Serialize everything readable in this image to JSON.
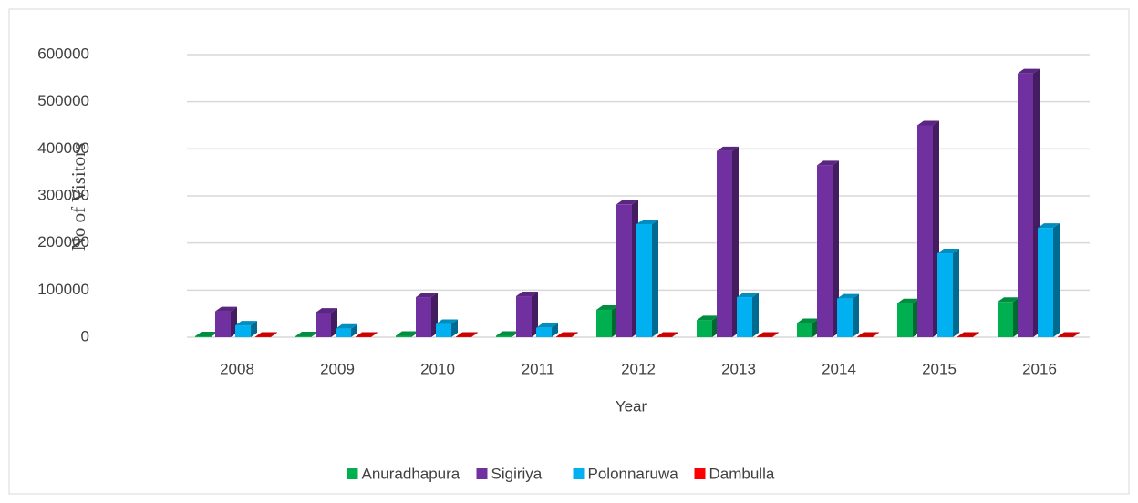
{
  "chart_data": {
    "type": "bar",
    "x_label": "Year",
    "y_label": "No of Visitors",
    "categories": [
      "2008",
      "2009",
      "2010",
      "2011",
      "2012",
      "2013",
      "2014",
      "2015",
      "2016"
    ],
    "series": [
      {
        "name": "Anuradhapura",
        "color": "#00b050",
        "values": [
          2000,
          2000,
          3000,
          3000,
          58000,
          36000,
          30000,
          72000,
          75000
        ]
      },
      {
        "name": "Sigiriya",
        "color": "#7030a0",
        "values": [
          55000,
          52000,
          85000,
          87000,
          282000,
          395000,
          365000,
          450000,
          560000
        ]
      },
      {
        "name": "Polonnaruwa",
        "color": "#00b0f0",
        "values": [
          25000,
          18000,
          28000,
          20000,
          240000,
          85000,
          82000,
          178000,
          232000
        ]
      },
      {
        "name": "Dambulla",
        "color": "#ff0000",
        "values": [
          1000,
          1000,
          1000,
          1000,
          1000,
          1000,
          1000,
          1000,
          1000
        ]
      }
    ],
    "ylim": [
      0,
      600000
    ],
    "yticks": [
      0,
      100000,
      200000,
      300000,
      400000,
      500000,
      600000
    ],
    "grid": true,
    "legend": "bottom"
  }
}
